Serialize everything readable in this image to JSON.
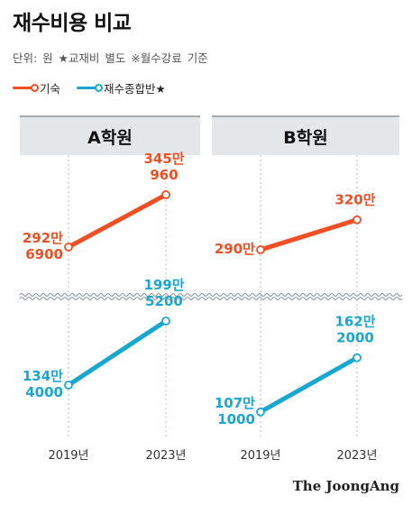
{
  "title": "재수비용 비교",
  "subtitle": "단위: 원   ★교재비 별도   ※월수강료 기준",
  "colors": {
    "gisuk": "#f04e23",
    "jonghap": "#18a7d2",
    "panel_bg": "#e4e7ea",
    "break": "#9aa0a6"
  },
  "chart_data": {
    "type": "line",
    "legend": [
      "기숙",
      "재수종합반★"
    ],
    "x": [
      "2019년",
      "2023년"
    ],
    "panels": [
      {
        "name": "A학원",
        "series": [
          {
            "name": "기숙",
            "values": [
              2926900,
              3450960
            ],
            "labels": [
              "292만\n6900",
              "345만\n960"
            ]
          },
          {
            "name": "재수종합반★",
            "values": [
              1344000,
              1995200
            ],
            "labels": [
              "134만\n4000",
              "199만\n5200"
            ]
          }
        ]
      },
      {
        "name": "B학원",
        "series": [
          {
            "name": "기숙",
            "values": [
              2900000,
              3200000
            ],
            "labels": [
              "290만",
              "320만"
            ]
          },
          {
            "name": "재수종합반★",
            "values": [
              1071000,
              1622000
            ],
            "labels": [
              "107만\n1000",
              "162만\n2000"
            ]
          }
        ]
      }
    ],
    "axis_break": true,
    "grid": false,
    "legend_position": "top-left"
  },
  "source": "The JoongAng"
}
